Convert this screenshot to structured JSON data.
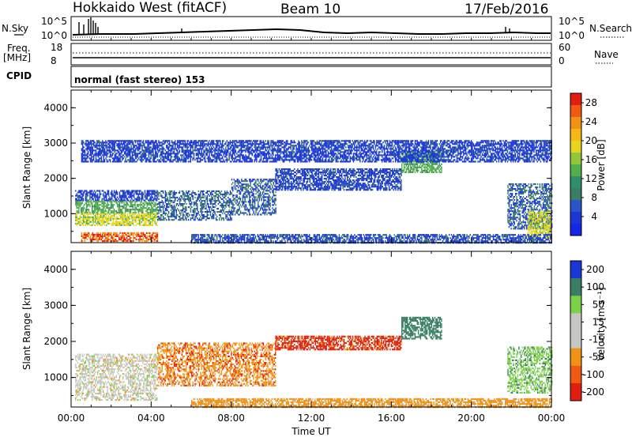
{
  "header": {
    "station": "Hokkaido West (fitACF)",
    "beam": "Beam 10",
    "date": "17/Feb/2016"
  },
  "strip": {
    "nsky_label": "N.Sky",
    "nsearch_label": "N.Search",
    "top_ticks": [
      "10^5",
      "10^0"
    ],
    "freq_label": "Freq.",
    "freq_unit": "[MHz]",
    "freq_ticks": [
      "18",
      "8"
    ],
    "nave_label": "Nave",
    "nave_ticks": [
      "60",
      "0"
    ],
    "cpid_label": "CPID",
    "cpid_value": "normal (fast stereo) 153"
  },
  "colors": {
    "blue": "#1a37d6",
    "darkgreen": "#3a7f64",
    "green": "#52b04a",
    "yellow": "#e8d41c",
    "orange": "#f09214",
    "red": "#e01f10",
    "gray": "#c6c6c2",
    "lgreen": "#7dd148"
  },
  "chart_data": [
    {
      "type": "heatmap",
      "panel": "power",
      "ylabel": "Slant Range [km]",
      "xlabel": "",
      "yticks": [
        "1000",
        "2000",
        "3000",
        "4000"
      ],
      "ylim": [
        180,
        4500
      ],
      "xticks": [
        "00:00",
        "04:00",
        "08:00",
        "12:00",
        "16:00",
        "20:00",
        "00:00"
      ],
      "xlim_hours": [
        0,
        24
      ],
      "colorbar_label": "Power [dB]",
      "colorbar_ticks": [
        "4",
        "8",
        "12",
        "16",
        "20",
        "24",
        "28"
      ],
      "colorbar_range": [
        0,
        30
      ],
      "regions": [
        {
          "t": [
            0.2,
            4.3
          ],
          "range": [
            1400,
            1700
          ],
          "value": 3
        },
        {
          "t": [
            0.2,
            4.3
          ],
          "range": [
            1050,
            1400
          ],
          "value": 12
        },
        {
          "t": [
            0.2,
            4.3
          ],
          "range": [
            700,
            1050
          ],
          "value": 18
        },
        {
          "t": [
            0.5,
            4.3
          ],
          "range": [
            250,
            520
          ],
          "value": 26
        },
        {
          "t": [
            4.3,
            8.0
          ],
          "range": [
            850,
            1700
          ],
          "value": 6
        },
        {
          "t": [
            8.0,
            10.2
          ],
          "range": [
            1000,
            2000
          ],
          "value": 6
        },
        {
          "t": [
            10.2,
            16.5
          ],
          "range": [
            1700,
            2300
          ],
          "value": 3
        },
        {
          "t": [
            16.5,
            18.5
          ],
          "range": [
            2200,
            2800
          ],
          "value": 12
        },
        {
          "t": [
            21.8,
            24.0
          ],
          "range": [
            600,
            1900
          ],
          "value": 6
        },
        {
          "t": [
            22.8,
            24.0
          ],
          "range": [
            300,
            1100
          ],
          "value": 18
        },
        {
          "t": [
            6.0,
            24.0
          ],
          "range": [
            200,
            450
          ],
          "value": 4
        },
        {
          "t": [
            0.5,
            24.0
          ],
          "range": [
            2500,
            3100
          ],
          "value": 3
        }
      ]
    },
    {
      "type": "heatmap",
      "panel": "velocity",
      "ylabel": "Slant Range [km]",
      "xlabel": "Time UT",
      "yticks": [
        "1000",
        "2000",
        "3000",
        "4000"
      ],
      "ylim": [
        180,
        4500
      ],
      "xticks": [
        "00:00",
        "04:00",
        "08:00",
        "12:00",
        "16:00",
        "20:00",
        "00:00"
      ],
      "xlim_hours": [
        0,
        24
      ],
      "colorbar_label": "Velocity [m s⁻¹]",
      "colorbar_ticks": [
        "200",
        "100",
        "50",
        "15",
        "-15",
        "-50",
        "-100",
        "-200"
      ],
      "regions": [
        {
          "t": [
            0.2,
            4.3
          ],
          "range": [
            400,
            1700
          ],
          "value": 0
        },
        {
          "t": [
            4.3,
            10.2
          ],
          "range": [
            800,
            2000
          ],
          "value": -40
        },
        {
          "t": [
            10.2,
            16.5
          ],
          "range": [
            1800,
            2200
          ],
          "value": -60
        },
        {
          "t": [
            16.5,
            18.5
          ],
          "range": [
            2100,
            2700
          ],
          "value": 80
        },
        {
          "t": [
            21.8,
            24.0
          ],
          "range": [
            600,
            1900
          ],
          "value": 40
        },
        {
          "t": [
            6.0,
            24.0
          ],
          "range": [
            200,
            450
          ],
          "value": -30
        }
      ]
    }
  ]
}
